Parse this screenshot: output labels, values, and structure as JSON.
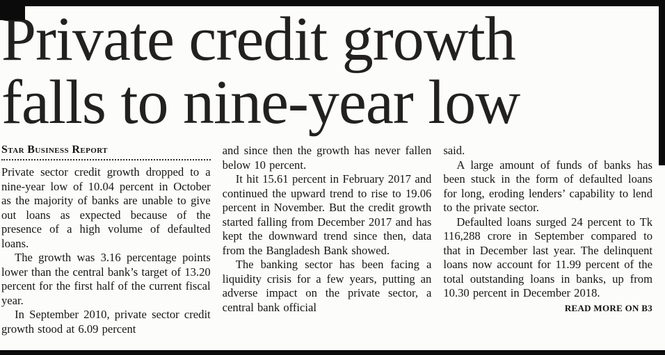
{
  "article": {
    "headline_line1": "Private credit growth",
    "headline_line2": "falls to nine-year low",
    "byline": "Star Business Report",
    "columns": [
      {
        "paragraphs": [
          "Private sector credit growth dropped to a nine-year low of 10.04 percent in October as the majority of banks are unable to give out loans as expected because of the presence of a high volume of defaulted loans.",
          "The growth was 3.16 percentage points lower than the central bank’s target of 13.20 percent for the first half of the current fiscal year.",
          "In September 2010, private sector credit growth stood at 6.09 percent"
        ]
      },
      {
        "paragraphs": [
          "and since then the growth has never fallen below 10 percent.",
          "It hit 15.61 percent in February 2017 and continued the upward trend to rise to 19.06 percent in November. But the credit growth started falling from December 2017 and has kept the downward trend since then, data from the Bangladesh Bank showed.",
          "The banking sector has been facing a liquidity crisis for a few years, putting an adverse impact on the private sector, a central bank official"
        ]
      },
      {
        "paragraphs": [
          "said.",
          "A large amount of funds of banks has been stuck in the form of defaulted loans for long, eroding lenders’ capability to lend to the private sector.",
          "Defaulted loans surged 24 percent to Tk 116,288 crore in September compared to that in December last year. The delinquent loans now account for 11.99 percent of the total outstanding loans in banks, up from 10.30 percent in December 2018."
        ]
      }
    ],
    "read_more": "READ MORE ON B3"
  },
  "colors": {
    "ink": "#161616",
    "paper": "#fcfcfa",
    "rule": "#0b0b0b"
  }
}
